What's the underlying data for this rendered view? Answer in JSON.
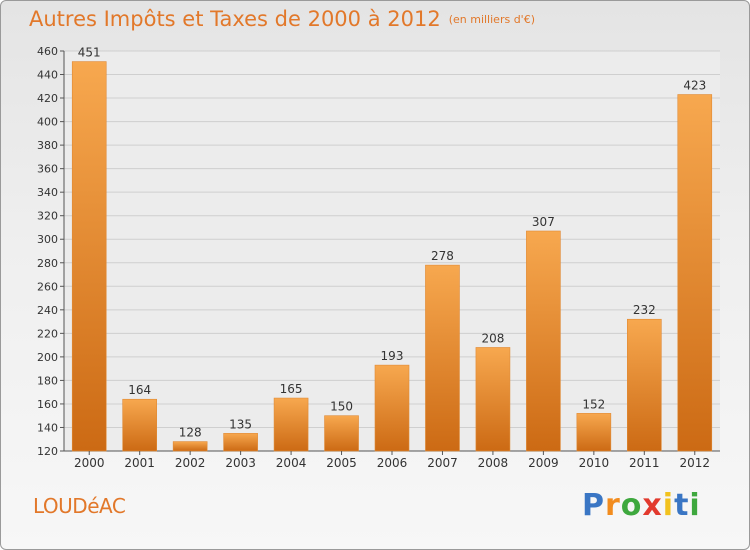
{
  "chart_data": {
    "type": "bar",
    "title": "Autres Impôts et Taxes de 2000 à 2012",
    "subtitle": "(en milliers d'€)",
    "categories": [
      "2000",
      "2001",
      "2002",
      "2003",
      "2004",
      "2005",
      "2006",
      "2007",
      "2008",
      "2009",
      "2010",
      "2011",
      "2012"
    ],
    "values": [
      451,
      164,
      128,
      135,
      165,
      150,
      193,
      278,
      208,
      307,
      152,
      232,
      423
    ],
    "ylim": [
      120,
      460
    ],
    "yticks": [
      120,
      140,
      160,
      180,
      200,
      220,
      240,
      260,
      280,
      300,
      320,
      340,
      360,
      380,
      400,
      420,
      440,
      460
    ],
    "grid": true,
    "bar_color_light": "#f7a84f",
    "bar_color_dark": "#cc6a14"
  },
  "location": "LOUDéAC",
  "brand": {
    "letters": [
      "P",
      "r",
      "o",
      "x",
      "i",
      "t",
      "i"
    ],
    "colors": [
      "#3a76c4",
      "#f28c1e",
      "#3ea83e",
      "#e23a2e",
      "#f2c21e",
      "#3a76c4",
      "#3ea83e"
    ]
  }
}
